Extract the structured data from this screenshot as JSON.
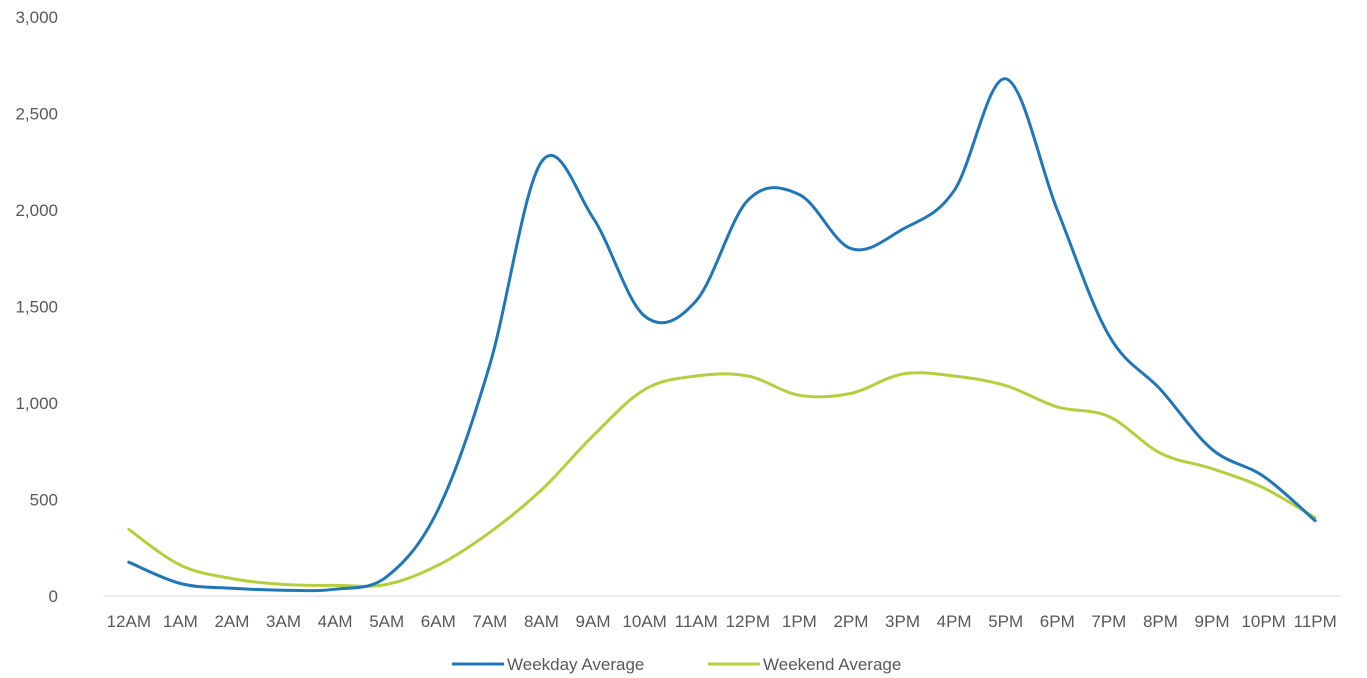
{
  "chart_data": {
    "type": "line",
    "title": "",
    "xlabel": "",
    "ylabel": "",
    "categories": [
      "12AM",
      "1AM",
      "2AM",
      "3AM",
      "4AM",
      "5AM",
      "6AM",
      "7AM",
      "8AM",
      "9AM",
      "10AM",
      "11AM",
      "12PM",
      "1PM",
      "2PM",
      "3PM",
      "4PM",
      "5PM",
      "6PM",
      "7PM",
      "8PM",
      "9PM",
      "10PM",
      "11PM"
    ],
    "y_ticks": [
      "0",
      "500",
      "1,000",
      "1,500",
      "2,000",
      "2,500",
      "3,000"
    ],
    "ylim": [
      0,
      3000
    ],
    "grid": false,
    "legend_position": "bottom",
    "series": [
      {
        "name": "Weekday Average",
        "color": "#1f77b9",
        "values": [
          175,
          65,
          40,
          30,
          35,
          100,
          450,
          1200,
          2250,
          1960,
          1450,
          1530,
          2050,
          2080,
          1800,
          1900,
          2100,
          2680,
          2000,
          1350,
          1070,
          760,
          620,
          390
        ]
      },
      {
        "name": "Weekend Average",
        "color": "#b5cf3c",
        "values": [
          345,
          160,
          90,
          60,
          55,
          60,
          160,
          330,
          550,
          830,
          1070,
          1140,
          1140,
          1040,
          1050,
          1150,
          1140,
          1090,
          980,
          930,
          740,
          660,
          560,
          405
        ]
      }
    ]
  }
}
